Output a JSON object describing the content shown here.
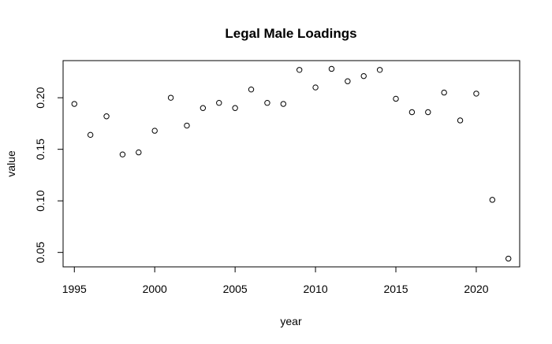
{
  "chart_data": {
    "type": "scatter",
    "title": "Legal Male Loadings",
    "xlabel": "year",
    "ylabel": "value",
    "xlim": [
      1994.3,
      2022.7
    ],
    "ylim": [
      0.036,
      0.236
    ],
    "x_ticks": [
      1995,
      2000,
      2005,
      2010,
      2015,
      2020
    ],
    "y_ticks": [
      0.05,
      0.1,
      0.15,
      0.2
    ],
    "y_tick_labels": [
      "0.05",
      "0.10",
      "0.15",
      "0.20"
    ],
    "grid": false,
    "legend": "none",
    "marker": "open-circle",
    "points": [
      {
        "x": 1995,
        "y": 0.194
      },
      {
        "x": 1996,
        "y": 0.164
      },
      {
        "x": 1997,
        "y": 0.182
      },
      {
        "x": 1998,
        "y": 0.145
      },
      {
        "x": 1999,
        "y": 0.147
      },
      {
        "x": 2000,
        "y": 0.168
      },
      {
        "x": 2001,
        "y": 0.2
      },
      {
        "x": 2002,
        "y": 0.173
      },
      {
        "x": 2003,
        "y": 0.19
      },
      {
        "x": 2004,
        "y": 0.195
      },
      {
        "x": 2005,
        "y": 0.19
      },
      {
        "x": 2006,
        "y": 0.208
      },
      {
        "x": 2007,
        "y": 0.195
      },
      {
        "x": 2008,
        "y": 0.194
      },
      {
        "x": 2009,
        "y": 0.227
      },
      {
        "x": 2010,
        "y": 0.21
      },
      {
        "x": 2011,
        "y": 0.228
      },
      {
        "x": 2012,
        "y": 0.216
      },
      {
        "x": 2013,
        "y": 0.221
      },
      {
        "x": 2014,
        "y": 0.227
      },
      {
        "x": 2015,
        "y": 0.199
      },
      {
        "x": 2016,
        "y": 0.186
      },
      {
        "x": 2017,
        "y": 0.186
      },
      {
        "x": 2018,
        "y": 0.205
      },
      {
        "x": 2019,
        "y": 0.178
      },
      {
        "x": 2020,
        "y": 0.204
      },
      {
        "x": 2021,
        "y": 0.101
      },
      {
        "x": 2022,
        "y": 0.044
      }
    ]
  }
}
